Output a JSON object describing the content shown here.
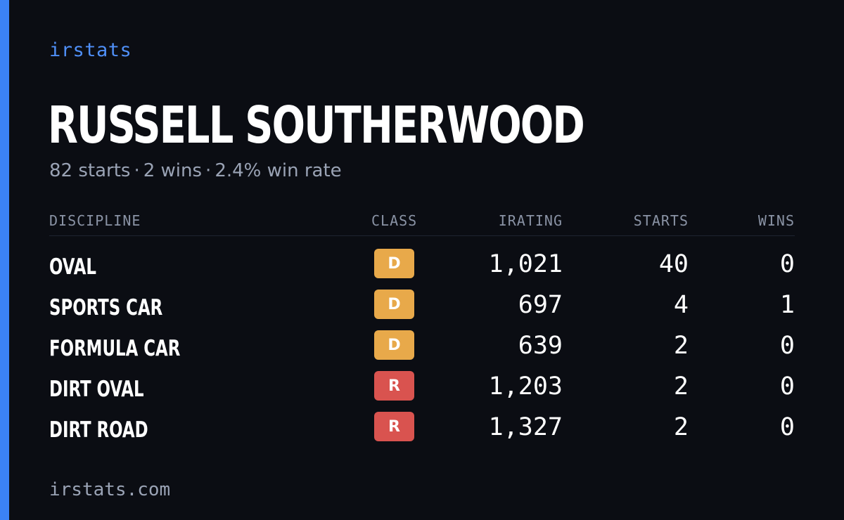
{
  "brand": "irstats",
  "driver": {
    "name": "RUSSELL SOUTHERWOOD",
    "summary": {
      "starts": "82 starts",
      "wins": "2 wins",
      "win_rate": "2.4% win rate",
      "separator": "·"
    }
  },
  "table": {
    "headers": {
      "discipline": "DISCIPLINE",
      "class": "CLASS",
      "irating": "IRATING",
      "starts": "STARTS",
      "wins": "WINS"
    },
    "rows": [
      {
        "discipline": "OVAL",
        "class": "D",
        "irating": "1,021",
        "starts": "40",
        "wins": "0"
      },
      {
        "discipline": "SPORTS CAR",
        "class": "D",
        "irating": "697",
        "starts": "4",
        "wins": "1"
      },
      {
        "discipline": "FORMULA CAR",
        "class": "D",
        "irating": "639",
        "starts": "2",
        "wins": "0"
      },
      {
        "discipline": "DIRT OVAL",
        "class": "R",
        "irating": "1,203",
        "starts": "2",
        "wins": "0"
      },
      {
        "discipline": "DIRT ROAD",
        "class": "R",
        "irating": "1,327",
        "starts": "2",
        "wins": "0"
      }
    ]
  },
  "colors": {
    "accent": "#3b82f6",
    "class_D": "#e8a94a",
    "class_R": "#d9534f",
    "background": "#0b0d13"
  },
  "footer": "irstats.com"
}
